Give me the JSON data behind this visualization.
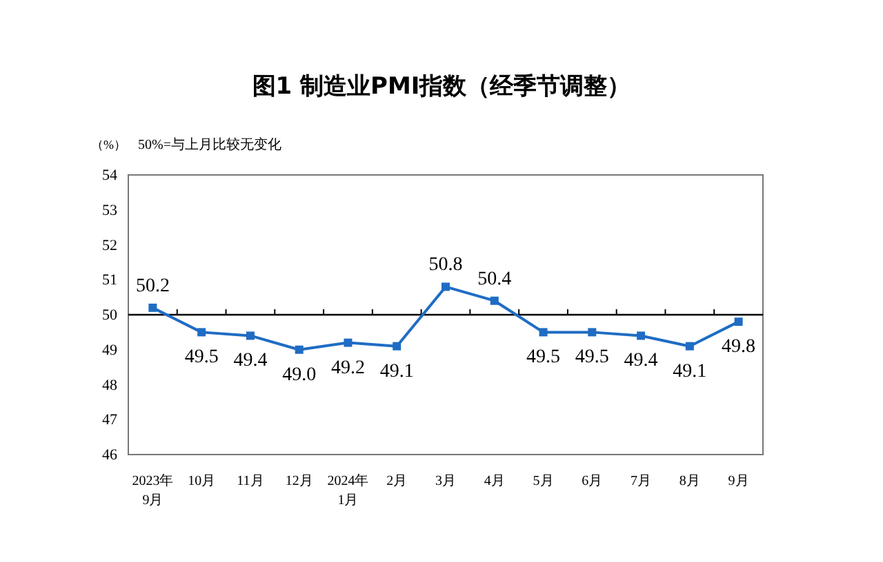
{
  "chart_data": {
    "type": "line",
    "title": "图1  制造业PMI指数（经季节调整）",
    "ylabel": "（%）",
    "annotations": [
      "50%=与上月比较无变化"
    ],
    "categories": [
      "2023年\n9月",
      "10月",
      "11月",
      "12月",
      "2024年\n1月",
      "2月",
      "3月",
      "4月",
      "5月",
      "6月",
      "7月",
      "8月",
      "9月"
    ],
    "series": [
      {
        "color": "#1f6cc4",
        "values": [
          50.2,
          49.5,
          49.4,
          49.0,
          49.2,
          49.1,
          50.8,
          50.4,
          49.5,
          49.5,
          49.4,
          49.1,
          49.8
        ],
        "value_labels": [
          "50.2",
          "49.5",
          "49.4",
          "49.0",
          "49.2",
          "49.1",
          "50.8",
          "50.4",
          "49.5",
          "49.5",
          "49.4",
          "49.1",
          "49.8"
        ]
      }
    ],
    "ylim": [
      46,
      54
    ],
    "yticks": [
      46,
      47,
      48,
      49,
      50,
      51,
      52,
      53,
      54
    ],
    "ref_lines": [
      {
        "axis": "y",
        "value": 50,
        "color": "#000000"
      }
    ],
    "marker": "square",
    "line_style": "solid",
    "grid": false
  }
}
